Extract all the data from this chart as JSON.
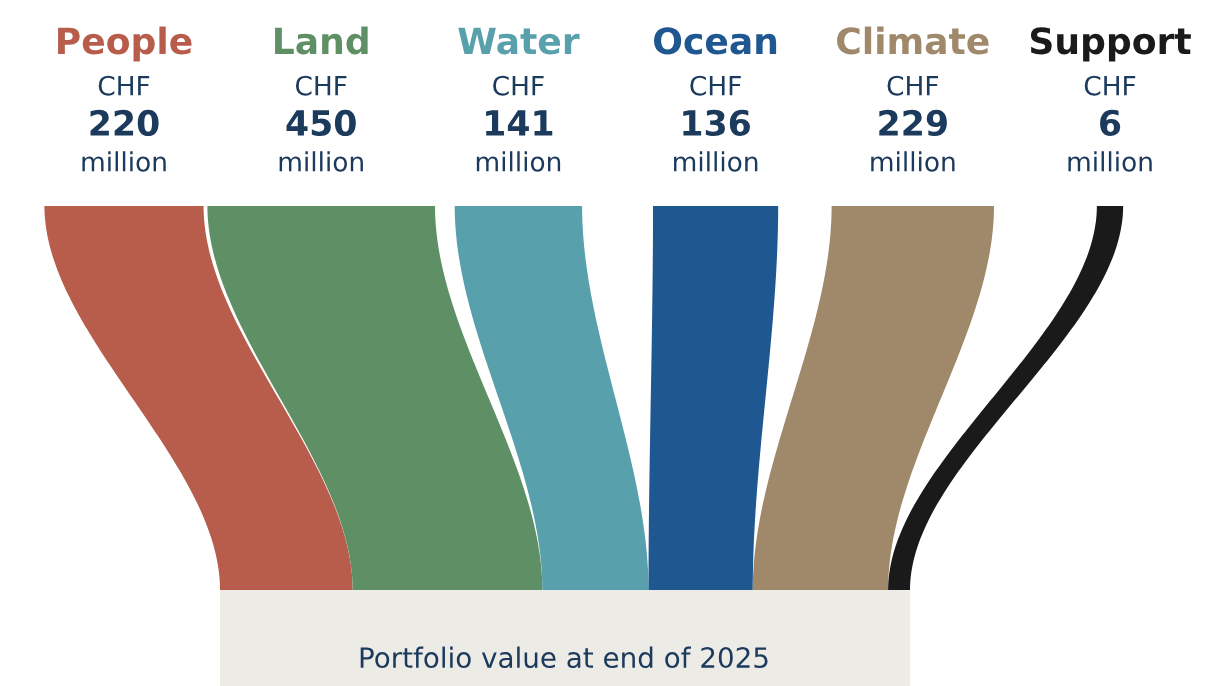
{
  "chart_data": {
    "type": "other",
    "categories": [
      "People",
      "Land",
      "Water",
      "Ocean",
      "Climate",
      "Support"
    ],
    "values": [
      220,
      450,
      141,
      136,
      229,
      6
    ],
    "colors": [
      "#b85c4c",
      "#5f9065",
      "#58a0ab",
      "#1f5791",
      "#a0886a",
      "#1a1a1a"
    ],
    "data_labels": true,
    "annotations": [
      {
        "text": "CHF",
        "x": "People"
      },
      {
        "text": "million",
        "x": "People"
      },
      {
        "text": "CHF",
        "x": "Land"
      },
      {
        "text": "million",
        "x": "Land"
      },
      {
        "text": "CHF",
        "x": "Water"
      },
      {
        "text": "million",
        "x": "Water"
      },
      {
        "text": "CHF",
        "x": "Ocean"
      },
      {
        "text": "million",
        "x": "Ocean"
      },
      {
        "text": "CHF",
        "x": "Climate"
      },
      {
        "text": "million",
        "x": "Climate"
      },
      {
        "text": "CHF",
        "x": "Support"
      },
      {
        "text": "million",
        "x": "Support"
      },
      "Portfolio value at end of 2025"
    ]
  }
}
